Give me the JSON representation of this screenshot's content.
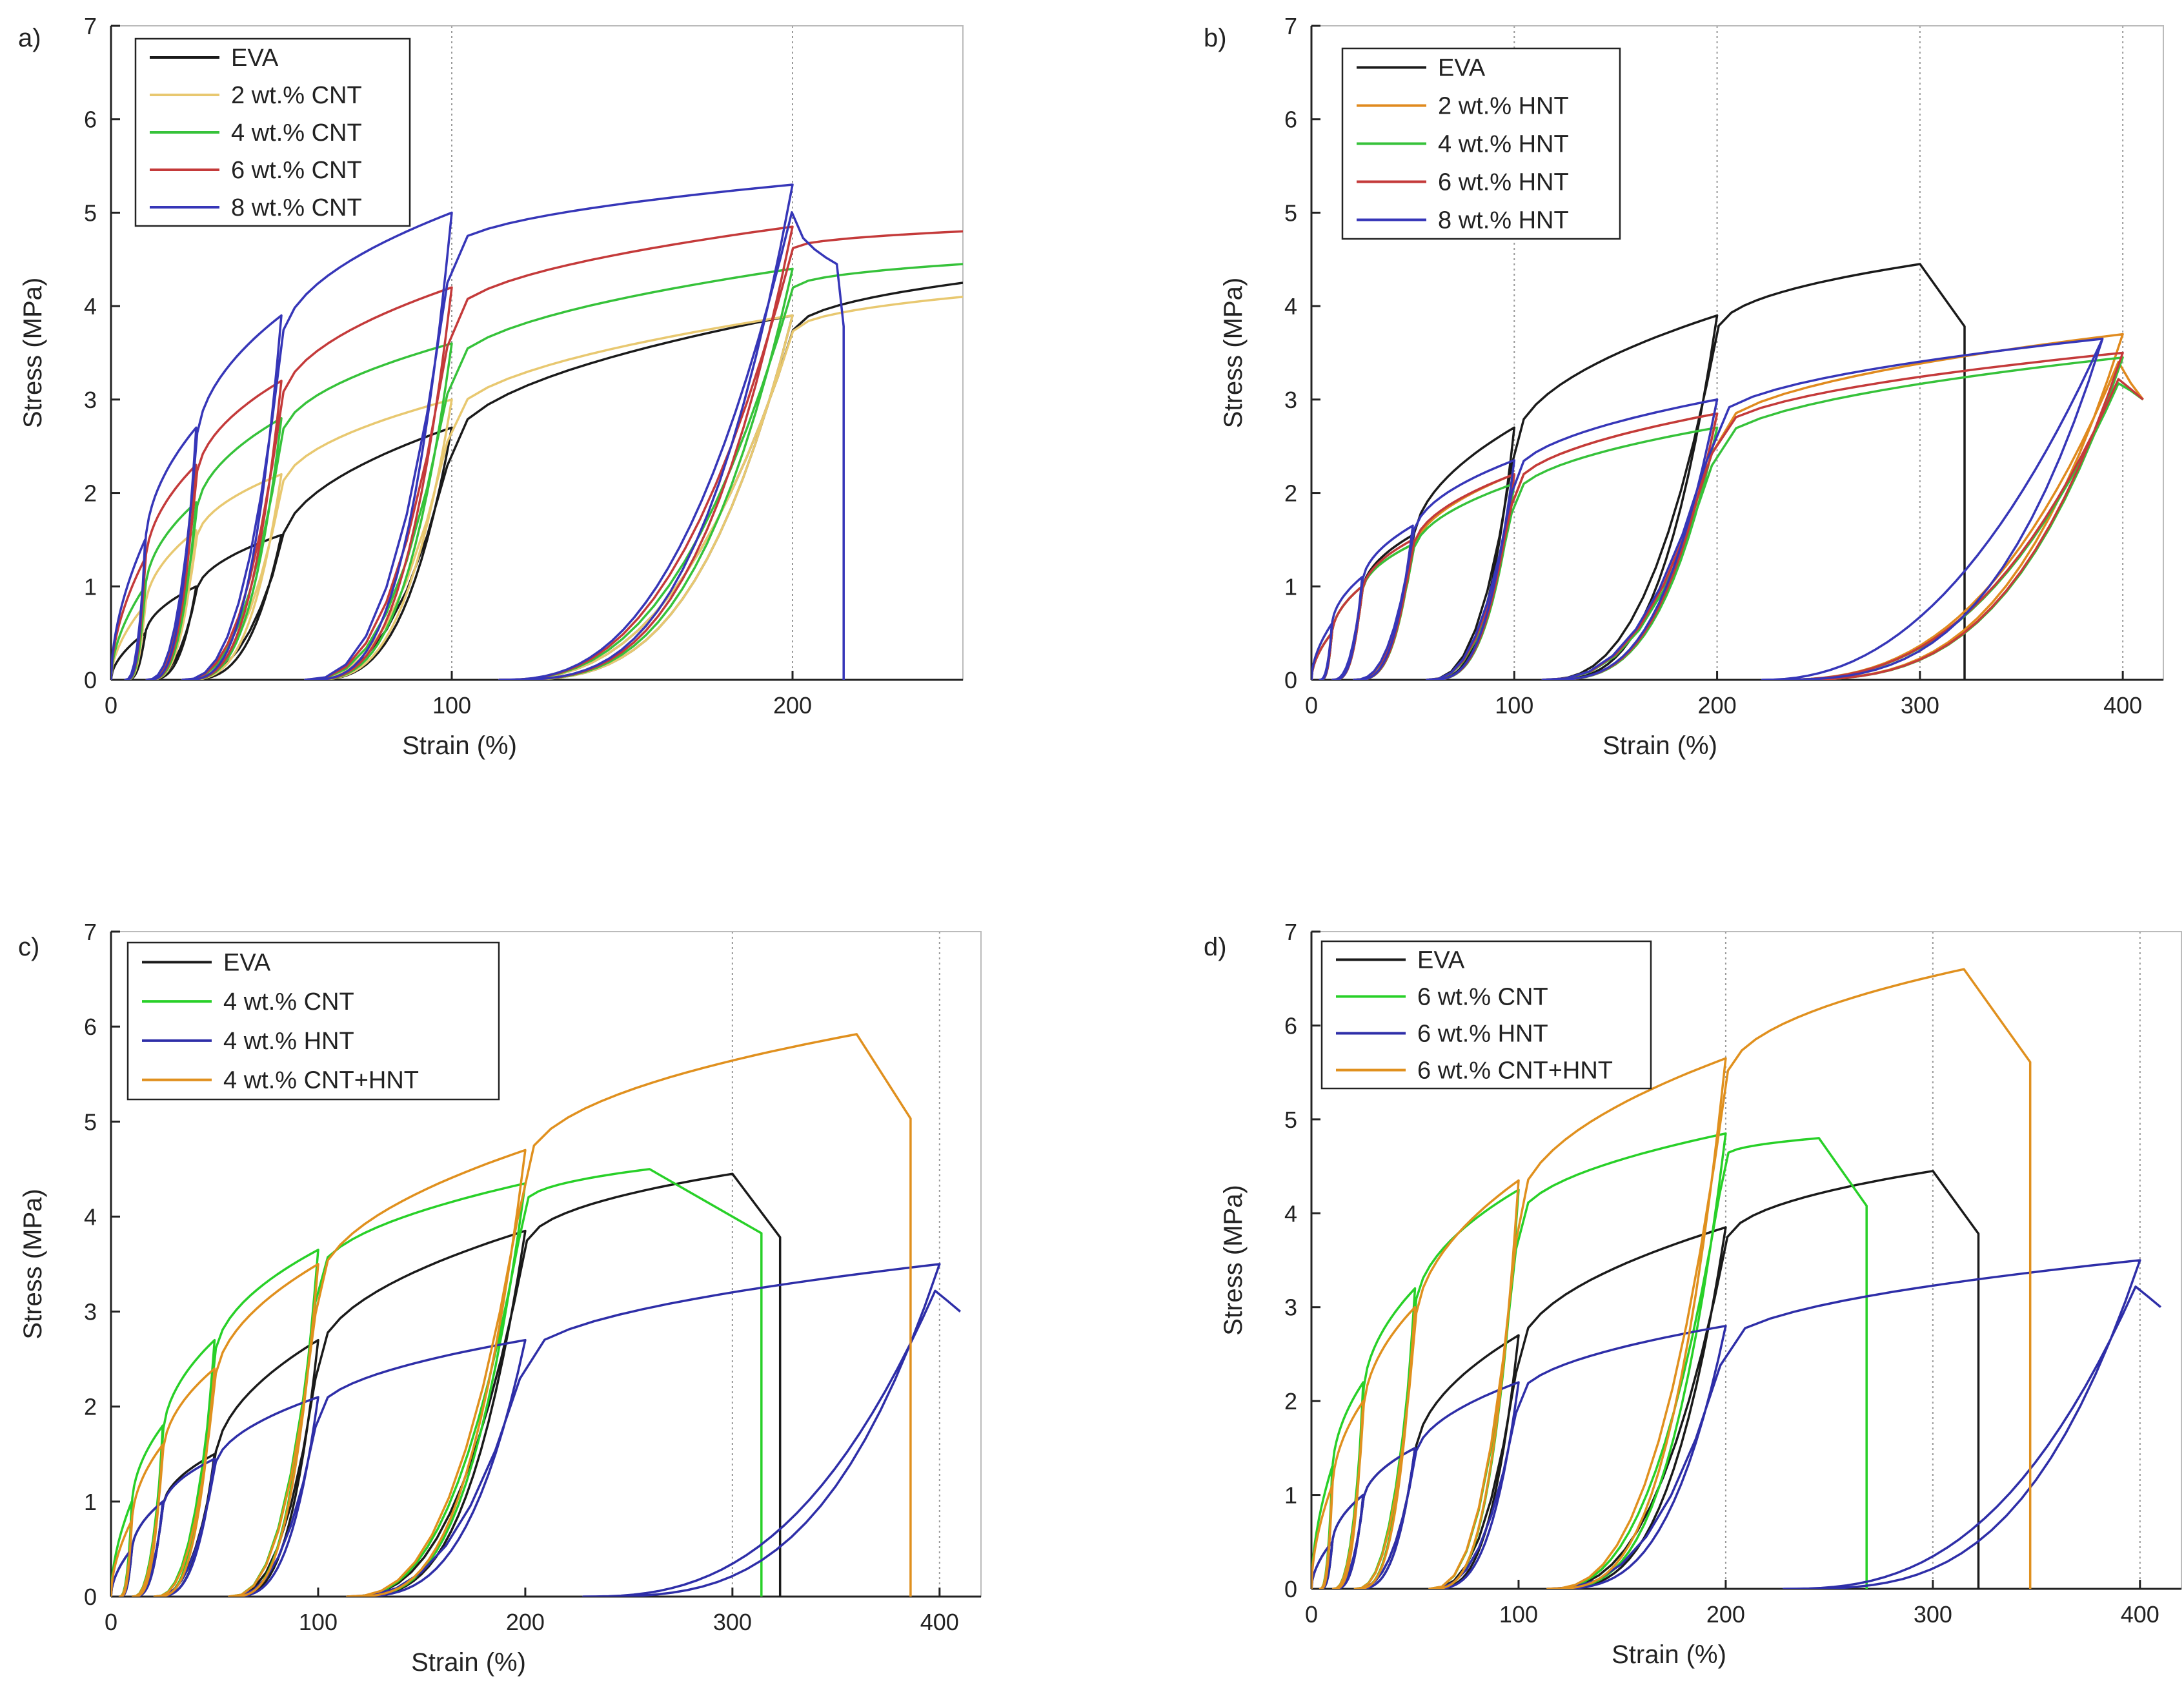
{
  "figure": {
    "colors": {
      "EVA": "#1a1a1a",
      "CNT2": "#e8c870",
      "CNT4": "#36c23a",
      "CNT6": "#c43a3a",
      "CNT8": "#3636b8",
      "HNT2": "#e08a1e",
      "HNT4": "#36c23a",
      "HNT6": "#c43a3a",
      "HNT8": "#3636b8",
      "CNT4b": "#28d028",
      "HNT4b": "#2e2ea8",
      "MIX4": "#e0901e",
      "CNT6b": "#28d028",
      "HNT6b": "#2e2ea8",
      "MIX6": "#e0901e"
    }
  },
  "chart_data": [
    {
      "type": "line",
      "tag": "a)",
      "xlabel": "Strain (%)",
      "ylabel": "Stress (MPa)",
      "xlim": [
        0,
        250
      ],
      "ylim": [
        0,
        7
      ],
      "xticks": [
        0,
        100,
        200
      ],
      "yticks": [
        0,
        1,
        2,
        3,
        4,
        5,
        6,
        7
      ],
      "legend_position": "top-left",
      "vertical_dotted_lines_at": [
        100,
        200
      ],
      "series": [
        {
          "name": "EVA",
          "color_key": "EVA",
          "peaks": [
            [
              10,
              0.5
            ],
            [
              25,
              1.0
            ],
            [
              50,
              1.55
            ],
            [
              100,
              2.7
            ],
            [
              200,
              3.9
            ]
          ],
          "final": [
            250,
            4.25
          ]
        },
        {
          "name": "2 wt.% CNT",
          "color_key": "CNT2",
          "peaks": [
            [
              10,
              0.8
            ],
            [
              25,
              1.6
            ],
            [
              50,
              2.2
            ],
            [
              100,
              3.0
            ],
            [
              200,
              3.9
            ]
          ],
          "final": [
            250,
            4.1
          ]
        },
        {
          "name": "4 wt.% CNT",
          "color_key": "CNT4",
          "peaks": [
            [
              10,
              1.0
            ],
            [
              25,
              1.9
            ],
            [
              50,
              2.8
            ],
            [
              100,
              3.6
            ],
            [
              200,
              4.4
            ]
          ],
          "final": [
            250,
            4.45
          ]
        },
        {
          "name": "6 wt.% CNT",
          "color_key": "CNT6",
          "peaks": [
            [
              10,
              1.3
            ],
            [
              25,
              2.3
            ],
            [
              50,
              3.2
            ],
            [
              100,
              4.2
            ],
            [
              200,
              4.85
            ]
          ],
          "final": [
            250,
            4.8
          ]
        },
        {
          "name": "8 wt.% CNT",
          "color_key": "CNT8",
          "peaks": [
            [
              10,
              1.5
            ],
            [
              25,
              2.7
            ],
            [
              50,
              3.9
            ],
            [
              100,
              5.0
            ],
            [
              200,
              5.3
            ]
          ],
          "final": [
            213,
            4.45
          ],
          "break_at": 215
        }
      ]
    },
    {
      "type": "line",
      "tag": "b)",
      "xlabel": "Strain (%)",
      "ylabel": "Stress (MPa)",
      "xlim": [
        0,
        420
      ],
      "ylim": [
        0,
        7
      ],
      "xticks": [
        0,
        100,
        200,
        300,
        400
      ],
      "yticks": [
        0,
        1,
        2,
        3,
        4,
        5,
        6,
        7
      ],
      "legend_position": "top-left",
      "vertical_dotted_lines_at": [
        100,
        200,
        300,
        400
      ],
      "series": [
        {
          "name": "EVA",
          "color_key": "EVA",
          "peaks": [
            [
              10,
              0.5
            ],
            [
              25,
              1.0
            ],
            [
              50,
              1.55
            ],
            [
              100,
              2.7
            ],
            [
              200,
              3.9
            ]
          ],
          "final": [
            300,
            4.45
          ],
          "break_at": 322
        },
        {
          "name": "2 wt.% HNT",
          "color_key": "HNT2",
          "peaks": [
            [
              10,
              0.5
            ],
            [
              25,
              1.0
            ],
            [
              50,
              1.45
            ],
            [
              100,
              2.2
            ],
            [
              200,
              2.85
            ],
            [
              400,
              3.7
            ]
          ],
          "final": [
            410,
            3.0
          ]
        },
        {
          "name": "4 wt.% HNT",
          "color_key": "HNT4",
          "peaks": [
            [
              10,
              0.5
            ],
            [
              25,
              1.0
            ],
            [
              50,
              1.45
            ],
            [
              100,
              2.1
            ],
            [
              200,
              2.7
            ],
            [
              400,
              3.45
            ]
          ],
          "final": [
            410,
            3.0
          ]
        },
        {
          "name": "6 wt.% HNT",
          "color_key": "HNT6",
          "peaks": [
            [
              10,
              0.5
            ],
            [
              25,
              1.0
            ],
            [
              50,
              1.5
            ],
            [
              100,
              2.2
            ],
            [
              200,
              2.85
            ],
            [
              400,
              3.5
            ]
          ],
          "final": [
            410,
            3.0
          ]
        },
        {
          "name": "8 wt.% HNT",
          "color_key": "HNT8",
          "peaks": [
            [
              10,
              0.6
            ],
            [
              25,
              1.1
            ],
            [
              50,
              1.65
            ],
            [
              100,
              2.35
            ],
            [
              200,
              3.0
            ],
            [
              390,
              3.65
            ]
          ],
          "final": [
            390,
            3.65
          ]
        }
      ]
    },
    {
      "type": "line",
      "tag": "c)",
      "xlabel": "Strain (%)",
      "ylabel": "Stress (MPa)",
      "xlim": [
        0,
        420
      ],
      "ylim": [
        0,
        7
      ],
      "xticks": [
        0,
        100,
        200,
        300,
        400
      ],
      "yticks": [
        0,
        1,
        2,
        3,
        4,
        5,
        6,
        7
      ],
      "legend_position": "top-left",
      "vertical_dotted_lines_at": [
        300,
        400
      ],
      "series": [
        {
          "name": "EVA",
          "color_key": "EVA",
          "peaks": [
            [
              10,
              0.5
            ],
            [
              25,
              1.0
            ],
            [
              50,
              1.5
            ],
            [
              100,
              2.7
            ],
            [
              200,
              3.85
            ]
          ],
          "final": [
            300,
            4.45
          ],
          "break_at": 323
        },
        {
          "name": "4 wt.% CNT",
          "color_key": "CNT4b",
          "peaks": [
            [
              10,
              1.0
            ],
            [
              25,
              1.8
            ],
            [
              50,
              2.7
            ],
            [
              100,
              3.65
            ],
            [
              200,
              4.35
            ]
          ],
          "final": [
            260,
            4.5
          ],
          "break_at": 314
        },
        {
          "name": "4 wt.% HNT",
          "color_key": "HNT4b",
          "peaks": [
            [
              10,
              0.5
            ],
            [
              25,
              1.0
            ],
            [
              50,
              1.45
            ],
            [
              100,
              2.1
            ],
            [
              200,
              2.7
            ],
            [
              400,
              3.5
            ]
          ],
          "final": [
            410,
            3.0
          ]
        },
        {
          "name": "4 wt.% CNT+HNT",
          "color_key": "MIX4",
          "peaks": [
            [
              10,
              0.8
            ],
            [
              25,
              1.6
            ],
            [
              50,
              2.4
            ],
            [
              100,
              3.5
            ],
            [
              200,
              4.7
            ]
          ],
          "final": [
            360,
            5.92
          ],
          "break_at": 386
        }
      ]
    },
    {
      "type": "line",
      "tag": "d)",
      "xlabel": "Strain (%)",
      "ylabel": "Stress (MPa)",
      "xlim": [
        0,
        420
      ],
      "ylim": [
        0,
        7
      ],
      "xticks": [
        0,
        100,
        200,
        300,
        400
      ],
      "yticks": [
        0,
        1,
        2,
        3,
        4,
        5,
        6,
        7
      ],
      "legend_position": "top-left",
      "vertical_dotted_lines_at": [
        200,
        300,
        400
      ],
      "series": [
        {
          "name": "EVA",
          "color_key": "EVA",
          "peaks": [
            [
              10,
              0.5
            ],
            [
              25,
              1.0
            ],
            [
              50,
              1.5
            ],
            [
              100,
              2.7
            ],
            [
              200,
              3.85
            ]
          ],
          "final": [
            300,
            4.45
          ],
          "break_at": 322
        },
        {
          "name": "6 wt.% CNT",
          "color_key": "CNT6b",
          "peaks": [
            [
              10,
              1.3
            ],
            [
              25,
              2.2
            ],
            [
              50,
              3.2
            ],
            [
              100,
              4.25
            ],
            [
              200,
              4.85
            ]
          ],
          "final": [
            245,
            4.8
          ],
          "break_at": 268
        },
        {
          "name": "6 wt.% HNT",
          "color_key": "HNT6b",
          "peaks": [
            [
              10,
              0.5
            ],
            [
              25,
              1.0
            ],
            [
              50,
              1.5
            ],
            [
              100,
              2.2
            ],
            [
              200,
              2.8
            ],
            [
              400,
              3.5
            ]
          ],
          "final": [
            410,
            3.0
          ]
        },
        {
          "name": "6 wt.% CNT+HNT",
          "color_key": "MIX6",
          "peaks": [
            [
              10,
              1.1
            ],
            [
              25,
              2.0
            ],
            [
              50,
              3.0
            ],
            [
              100,
              4.35
            ],
            [
              200,
              5.65
            ]
          ],
          "final": [
            315,
            6.6
          ],
          "break_at": 347
        }
      ]
    }
  ]
}
